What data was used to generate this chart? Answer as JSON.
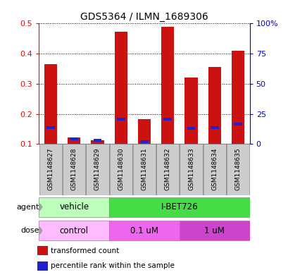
{
  "title": "GDS5364 / ILMN_1689306",
  "samples": [
    "GSM1148627",
    "GSM1148628",
    "GSM1148629",
    "GSM1148630",
    "GSM1148631",
    "GSM1148632",
    "GSM1148633",
    "GSM1148634",
    "GSM1148635"
  ],
  "red_values": [
    0.365,
    0.122,
    0.113,
    0.472,
    0.182,
    0.49,
    0.32,
    0.355,
    0.41
  ],
  "blue_values": [
    0.155,
    0.118,
    0.113,
    0.183,
    0.108,
    0.183,
    0.152,
    0.155,
    0.167
  ],
  "y_min": 0.1,
  "y_max": 0.5,
  "red_color": "#cc1111",
  "blue_color": "#2222cc",
  "agent_groups": [
    {
      "label": "vehicle",
      "start": 0,
      "end": 3,
      "color": "#bbffbb"
    },
    {
      "label": "I-BET726",
      "start": 3,
      "end": 9,
      "color": "#44dd44"
    }
  ],
  "dose_groups": [
    {
      "label": "control",
      "start": 0,
      "end": 3,
      "color": "#ffbbff"
    },
    {
      "label": "0.1 uM",
      "start": 3,
      "end": 6,
      "color": "#ee66ee"
    },
    {
      "label": "1 uM",
      "start": 6,
      "end": 9,
      "color": "#cc44cc"
    }
  ],
  "legend_red_label": "transformed count",
  "legend_blue_label": "percentile rank within the sample"
}
